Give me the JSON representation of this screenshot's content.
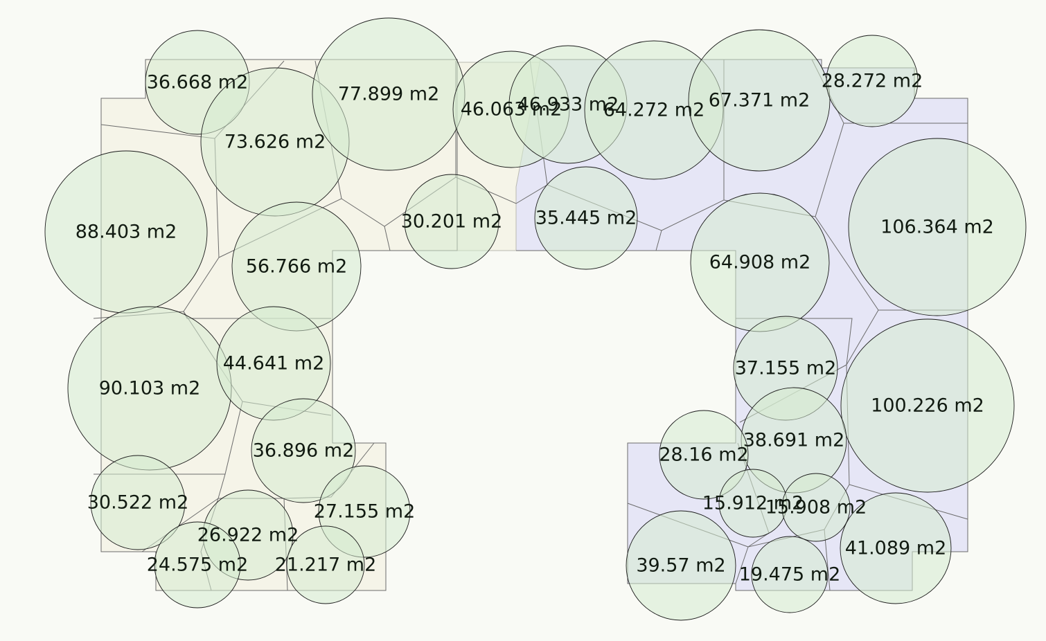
{
  "colors": {
    "background": "#f9faf5",
    "zone_left": "#f5f4e8",
    "zone_right": "#e6e6f6",
    "bubble_fill": "#d5ebcf",
    "cell_line": "#6b6b6b",
    "label": "#111a11"
  },
  "unit": "m2",
  "zones": [
    {
      "name": "zone-left"
    },
    {
      "name": "zone-right"
    }
  ],
  "areas": [
    {
      "label": "36.668 m2",
      "value": 36.668,
      "zone": "left"
    },
    {
      "label": "73.626 m2",
      "value": 73.626,
      "zone": "left"
    },
    {
      "label": "77.899 m2",
      "value": 77.899,
      "zone": "left"
    },
    {
      "label": "46.063 m2",
      "value": 46.063,
      "zone": "left"
    },
    {
      "label": "46.933 m2",
      "value": 46.933,
      "zone": "right"
    },
    {
      "label": "64.272 m2",
      "value": 64.272,
      "zone": "right"
    },
    {
      "label": "67.371 m2",
      "value": 67.371,
      "zone": "right"
    },
    {
      "label": "28.272 m2",
      "value": 28.272,
      "zone": "right"
    },
    {
      "label": "88.403 m2",
      "value": 88.403,
      "zone": "left"
    },
    {
      "label": "30.201 m2",
      "value": 30.201,
      "zone": "left"
    },
    {
      "label": "35.445 m2",
      "value": 35.445,
      "zone": "right"
    },
    {
      "label": "106.364 m2",
      "value": 106.364,
      "zone": "right"
    },
    {
      "label": "56.766 m2",
      "value": 56.766,
      "zone": "left"
    },
    {
      "label": "64.908 m2",
      "value": 64.908,
      "zone": "right"
    },
    {
      "label": "90.103 m2",
      "value": 90.103,
      "zone": "left"
    },
    {
      "label": "44.641 m2",
      "value": 44.641,
      "zone": "left"
    },
    {
      "label": "37.155 m2",
      "value": 37.155,
      "zone": "right"
    },
    {
      "label": "100.226 m2",
      "value": 100.226,
      "zone": "right"
    },
    {
      "label": "36.896 m2",
      "value": 36.896,
      "zone": "left"
    },
    {
      "label": "38.691 m2",
      "value": 38.691,
      "zone": "right"
    },
    {
      "label": "28.16 m2",
      "value": 28.16,
      "zone": "right"
    },
    {
      "label": "30.522 m2",
      "value": 30.522,
      "zone": "left"
    },
    {
      "label": "27.155 m2",
      "value": 27.155,
      "zone": "left"
    },
    {
      "label": "15.912 m2",
      "value": 15.912,
      "zone": "right"
    },
    {
      "label": "15.908 m2",
      "value": 15.908,
      "zone": "right"
    },
    {
      "label": "26.922 m2",
      "value": 26.922,
      "zone": "left"
    },
    {
      "label": "41.089 m2",
      "value": 41.089,
      "zone": "right"
    },
    {
      "label": "24.575 m2",
      "value": 24.575,
      "zone": "left"
    },
    {
      "label": "21.217 m2",
      "value": 21.217,
      "zone": "left"
    },
    {
      "label": "39.57 m2",
      "value": 39.57,
      "zone": "right"
    },
    {
      "label": "19.475 m2",
      "value": 19.475,
      "zone": "right"
    }
  ]
}
